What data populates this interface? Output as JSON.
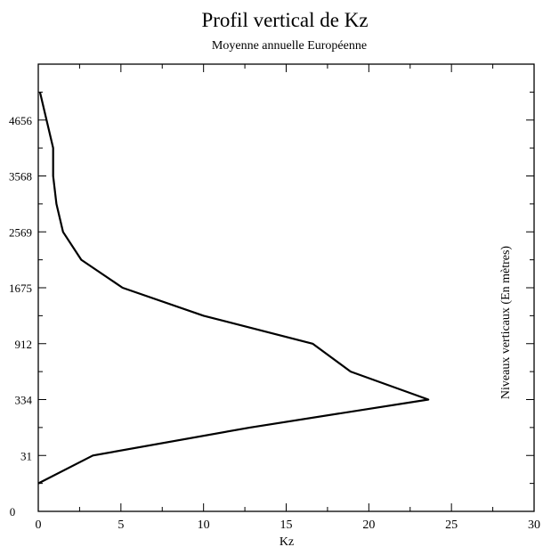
{
  "chart_data": {
    "type": "line",
    "title": "Profil vertical de Kz",
    "subtitle": "Moyenne annuelle Européenne",
    "xlabel": "Kz",
    "ylabel": "Niveaux verticaux (En mètres)",
    "xlim": [
      0,
      30
    ],
    "x_ticks": [
      "0",
      "5",
      "10",
      "15",
      "20",
      "25",
      "30"
    ],
    "y_ticks": [
      "0",
      "31",
      "334",
      "912",
      "1675",
      "2569",
      "3568",
      "4656"
    ],
    "ylim": [
      0,
      16
    ],
    "grid": false,
    "series": [
      {
        "x": [
          0.0,
          3.3,
          12.8,
          23.6,
          18.9,
          16.6,
          10.0,
          5.1,
          2.6,
          1.5,
          1.1,
          0.9,
          0.9,
          0.5,
          0.1
        ],
        "y": [
          1.0,
          2.0,
          3.0,
          4.0,
          5.0,
          6.0,
          7.0,
          8.0,
          9.0,
          10.0,
          11.0,
          12.0,
          13.0,
          14.0,
          15.0
        ]
      }
    ]
  }
}
